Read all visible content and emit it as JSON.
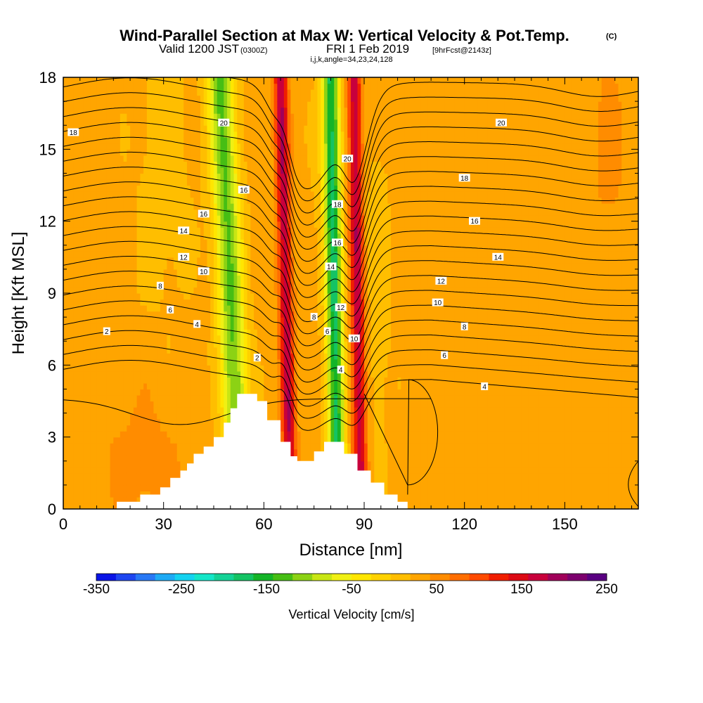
{
  "header": {
    "title": "Wind-Parallel Section at Max W: Vertical Velocity & Pot.Temp.",
    "title_mark": "(C)",
    "valid_prefix": "Valid 1200 JST",
    "valid_zulu": "(0300Z)",
    "valid_date": "FRI 1 Feb 2019",
    "forecast": "[9hrFcst@2143z]",
    "indices": "i,j,k,angle=34,23,24,128"
  },
  "chart_data": {
    "type": "heatmap",
    "xlabel": "Distance [nm]",
    "ylabel": "Height [Kft MSL]",
    "xlim": [
      0,
      172
    ],
    "ylim": [
      0,
      18
    ],
    "x_ticks": [
      "0",
      "30",
      "60",
      "90",
      "120",
      "150"
    ],
    "x_tick_values": [
      0,
      30,
      60,
      90,
      120,
      150
    ],
    "y_ticks": [
      "0",
      "3",
      "6",
      "9",
      "12",
      "15",
      "18"
    ],
    "y_tick_values": [
      0,
      3,
      6,
      9,
      12,
      15,
      18
    ],
    "grid": false,
    "colorbar": {
      "label": "Vertical Velocity [cm/s]",
      "range": [
        -350,
        250
      ],
      "tick_labels": [
        "-350",
        "-250",
        "-150",
        "-50",
        "50",
        "150",
        "250"
      ],
      "tick_values": [
        -350,
        -250,
        -150,
        -50,
        50,
        150,
        250
      ],
      "colors": [
        "#0a14e6",
        "#1e46f0",
        "#2878f5",
        "#1eaaf5",
        "#14d2f0",
        "#14e6c8",
        "#14d296",
        "#14c364",
        "#14b428",
        "#46be14",
        "#8cd214",
        "#c8e614",
        "#f0f014",
        "#ffe600",
        "#ffd200",
        "#ffbe00",
        "#ffa500",
        "#ff8c00",
        "#ff6e00",
        "#ff4b00",
        "#f01e00",
        "#dc0a14",
        "#c8003c",
        "#a0005a",
        "#7d006e",
        "#5a0082"
      ]
    },
    "velocity_bands": [
      {
        "x_bottom": 53,
        "x_top": 47,
        "half_width": 4,
        "value": -150
      },
      {
        "x_bottom": 82,
        "x_top": 80,
        "half_width": 2.5,
        "value": -200
      },
      {
        "x_bottom": 68,
        "x_top": 65,
        "half_width": 2,
        "value": 150
      },
      {
        "x_bottom": 89,
        "x_top": 87,
        "half_width": 2,
        "value": 150
      }
    ],
    "terrain": [
      [
        0,
        0
      ],
      [
        16,
        0
      ],
      [
        16,
        0.3
      ],
      [
        23,
        0.3
      ],
      [
        23,
        0.6
      ],
      [
        29,
        0.6
      ],
      [
        29,
        0.9
      ],
      [
        32,
        0.9
      ],
      [
        32,
        1.3
      ],
      [
        35,
        1.3
      ],
      [
        35,
        1.6
      ],
      [
        37,
        1.6
      ],
      [
        37,
        1.9
      ],
      [
        39,
        1.9
      ],
      [
        39,
        2.3
      ],
      [
        42,
        2.3
      ],
      [
        42,
        2.6
      ],
      [
        45,
        2.6
      ],
      [
        45,
        3.0
      ],
      [
        48,
        3.0
      ],
      [
        48,
        3.6
      ],
      [
        50,
        3.6
      ],
      [
        50,
        4.2
      ],
      [
        52,
        4.2
      ],
      [
        52,
        4.8
      ],
      [
        58,
        4.8
      ],
      [
        58,
        4.5
      ],
      [
        61,
        4.5
      ],
      [
        61,
        3.7
      ],
      [
        65,
        3.7
      ],
      [
        65,
        2.8
      ],
      [
        68,
        2.8
      ],
      [
        68,
        2.2
      ],
      [
        70,
        2.2
      ],
      [
        70,
        2.0
      ],
      [
        75,
        2.0
      ],
      [
        75,
        2.4
      ],
      [
        78,
        2.4
      ],
      [
        78,
        2.8
      ],
      [
        84,
        2.8
      ],
      [
        84,
        2.3
      ],
      [
        88,
        2.3
      ],
      [
        88,
        1.6
      ],
      [
        92,
        1.6
      ],
      [
        92,
        1.1
      ],
      [
        96,
        1.1
      ],
      [
        96,
        0.6
      ],
      [
        100,
        0.6
      ],
      [
        100,
        0.3
      ],
      [
        103,
        0.3
      ],
      [
        103,
        0
      ]
    ],
    "isotherm_labels": [
      {
        "text": "18",
        "x": 3,
        "y": 15.7
      },
      {
        "text": "20",
        "x": 48,
        "y": 16.1
      },
      {
        "text": "20",
        "x": 85,
        "y": 14.6
      },
      {
        "text": "20",
        "x": 131,
        "y": 16.1
      },
      {
        "text": "16",
        "x": 54,
        "y": 13.3
      },
      {
        "text": "16",
        "x": 42,
        "y": 12.3
      },
      {
        "text": "18",
        "x": 82,
        "y": 12.7
      },
      {
        "text": "18",
        "x": 120,
        "y": 13.8
      },
      {
        "text": "16",
        "x": 82,
        "y": 11.1
      },
      {
        "text": "16",
        "x": 123,
        "y": 12.0
      },
      {
        "text": "14",
        "x": 36,
        "y": 11.6
      },
      {
        "text": "14",
        "x": 80,
        "y": 10.1
      },
      {
        "text": "14",
        "x": 130,
        "y": 10.5
      },
      {
        "text": "12",
        "x": 36,
        "y": 10.5
      },
      {
        "text": "12",
        "x": 83,
        "y": 8.4
      },
      {
        "text": "12",
        "x": 113,
        "y": 9.5
      },
      {
        "text": "10",
        "x": 42,
        "y": 9.9
      },
      {
        "text": "10",
        "x": 87,
        "y": 7.1
      },
      {
        "text": "10",
        "x": 112,
        "y": 8.6
      },
      {
        "text": "8",
        "x": 29,
        "y": 9.3
      },
      {
        "text": "8",
        "x": 75,
        "y": 8.0
      },
      {
        "text": "8",
        "x": 120,
        "y": 7.6
      },
      {
        "text": "6",
        "x": 32,
        "y": 8.3
      },
      {
        "text": "6",
        "x": 79,
        "y": 7.4
      },
      {
        "text": "6",
        "x": 114,
        "y": 6.4
      },
      {
        "text": "4",
        "x": 40,
        "y": 7.7
      },
      {
        "text": "4",
        "x": 83,
        "y": 5.8
      },
      {
        "text": "4",
        "x": 126,
        "y": 5.1
      },
      {
        "text": "2",
        "x": 13,
        "y": 7.4
      },
      {
        "text": "2",
        "x": 58,
        "y": 6.3
      }
    ]
  }
}
